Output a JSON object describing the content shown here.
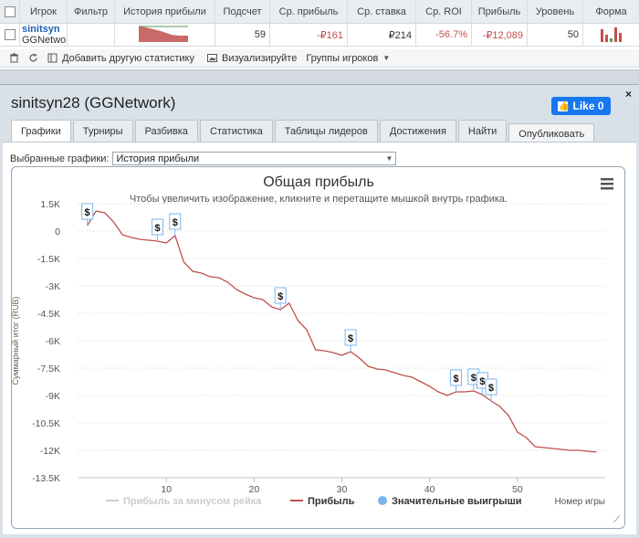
{
  "table": {
    "headers": [
      "Игрок",
      "Фильтр",
      "История прибыли",
      "Подсчет",
      "Ср. прибыль",
      "Ср. ставка",
      "Ср. ROI",
      "Прибыль",
      "Уровень",
      "Форма"
    ],
    "row": {
      "player_name": "sinitsyn",
      "network": "GGNetwo",
      "count": "59",
      "avg_profit": "-₽161",
      "avg_stake": "₽214",
      "avg_roi": "-56.7%",
      "profit": "-₽12,089",
      "level": "50"
    }
  },
  "toolbar": {
    "add_stat": "Добавить другую статистику",
    "visualize": "Визуализируйте",
    "groups": "Группы игроков"
  },
  "panel": {
    "title": "sinitsyn28 (GGNetwork)",
    "close": "×",
    "like_label": "Like 0",
    "tabs": [
      "Графики",
      "Турниры",
      "Разбивка",
      "Статистика",
      "Таблицы лидеров",
      "Достижения",
      "Найти"
    ],
    "publish_tab": "Опубликовать",
    "graph_select_label": "Выбранные графики:",
    "graph_select_value": "История прибыли"
  },
  "colors": {
    "profit_line": "#c0504d",
    "rake_line": "#cccccc",
    "big_win": "#7cb5ec",
    "accent": "#1a5fb4",
    "facebook": "#1877f2"
  },
  "chart_data": {
    "type": "line",
    "title": "Общая прибыль",
    "subtitle": "Чтобы увеличить изображение, кликните и перетащите мышкой внутрь графика.",
    "xlabel": "Номер игры",
    "ylabel": "Суммарный итог (RUB)",
    "xlim": [
      0,
      60
    ],
    "ylim": [
      -13500,
      1500
    ],
    "x_ticks": [
      10,
      20,
      30,
      40,
      50
    ],
    "y_ticks": [
      1500,
      0,
      -1500,
      -3000,
      -4500,
      -6000,
      -7500,
      -9000,
      -10500,
      -12000,
      -13500
    ],
    "y_tick_labels": [
      "1.5K",
      "0",
      "-1.5K",
      "-3K",
      "-4.5K",
      "-6K",
      "-7.5K",
      "-9K",
      "-10.5K",
      "-12K",
      "-13.5K"
    ],
    "grid": true,
    "legend": [
      "Прибыль за минусом рейка",
      "Прибыль",
      "Значительные выигрыши"
    ],
    "series": [
      {
        "name": "Прибыль",
        "x": [
          1,
          2,
          3,
          4,
          5,
          6,
          7,
          8,
          9,
          10,
          11,
          12,
          13,
          14,
          15,
          16,
          17,
          18,
          19,
          20,
          21,
          22,
          23,
          24,
          25,
          26,
          27,
          28,
          29,
          30,
          31,
          32,
          33,
          34,
          35,
          36,
          37,
          38,
          39,
          40,
          41,
          42,
          43,
          44,
          45,
          46,
          47,
          48,
          49,
          50,
          51,
          52,
          53,
          54,
          55,
          56,
          57,
          58,
          59
        ],
        "y": [
          300,
          1100,
          1000,
          500,
          -200,
          -350,
          -450,
          -500,
          -550,
          -650,
          -250,
          -1700,
          -2200,
          -2300,
          -2500,
          -2550,
          -2800,
          -3200,
          -3450,
          -3650,
          -3750,
          -4150,
          -4300,
          -3950,
          -4900,
          -5400,
          -6500,
          -6550,
          -6650,
          -6800,
          -6600,
          -6950,
          -7400,
          -7550,
          -7600,
          -7750,
          -7900,
          -8000,
          -8250,
          -8500,
          -8800,
          -9000,
          -8800,
          -8800,
          -8750,
          -8950,
          -9300,
          -9600,
          -10100,
          -11000,
          -11300,
          -11800,
          -11850,
          -11900,
          -11950,
          -12000,
          -12000,
          -12050,
          -12089
        ]
      }
    ],
    "big_wins": [
      {
        "x": 1,
        "label": "$"
      },
      {
        "x": 9,
        "label": "$"
      },
      {
        "x": 11,
        "label": "$"
      },
      {
        "x": 23,
        "label": "$"
      },
      {
        "x": 31,
        "label": "$"
      },
      {
        "x": 43,
        "label": "$"
      },
      {
        "x": 45,
        "label": "$"
      },
      {
        "x": 46,
        "label": "$"
      },
      {
        "x": 47,
        "label": "$"
      }
    ]
  }
}
